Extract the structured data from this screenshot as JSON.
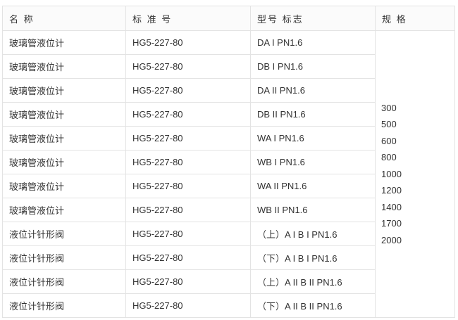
{
  "headers": [
    "名 称",
    "标 准 号",
    "型号 标志",
    "规 格"
  ],
  "rows": [
    {
      "name": "玻璃管液位计",
      "standard": "HG5-227-80",
      "model": "DA I PN1.6"
    },
    {
      "name": "玻璃管液位计",
      "standard": "HG5-227-80",
      "model": "DB I PN1.6"
    },
    {
      "name": "玻璃管液位计",
      "standard": "HG5-227-80",
      "model": "DA II PN1.6"
    },
    {
      "name": "玻璃管液位计",
      "standard": "HG5-227-80",
      "model": "DB II PN1.6"
    },
    {
      "name": "玻璃管液位计",
      "standard": "HG5-227-80",
      "model": "WA I PN1.6"
    },
    {
      "name": "玻璃管液位计",
      "standard": "HG5-227-80",
      "model": "WB I PN1.6"
    },
    {
      "name": "玻璃管液位计",
      "standard": "HG5-227-80",
      "model": "WA II PN1.6"
    },
    {
      "name": "玻璃管液位计",
      "standard": "HG5-227-80",
      "model": "WB II PN1.6"
    },
    {
      "name": "液位计针形阀",
      "standard": "HG5-227-80",
      "model": "（上）A I B I PN1.6"
    },
    {
      "name": "液位计针形阀",
      "standard": "HG5-227-80",
      "model": "（下）A I B I PN1.6"
    },
    {
      "name": "液位计针形阀",
      "standard": "HG5-227-80",
      "model": "（上）A II B II PN1.6"
    },
    {
      "name": "液位计针形阀",
      "standard": "HG5-227-80",
      "model": "（下）A II B II PN1.6"
    }
  ],
  "specs": [
    "300",
    "500",
    "600",
    "800",
    "1000",
    "1200",
    "1400",
    "1700",
    "2000"
  ]
}
